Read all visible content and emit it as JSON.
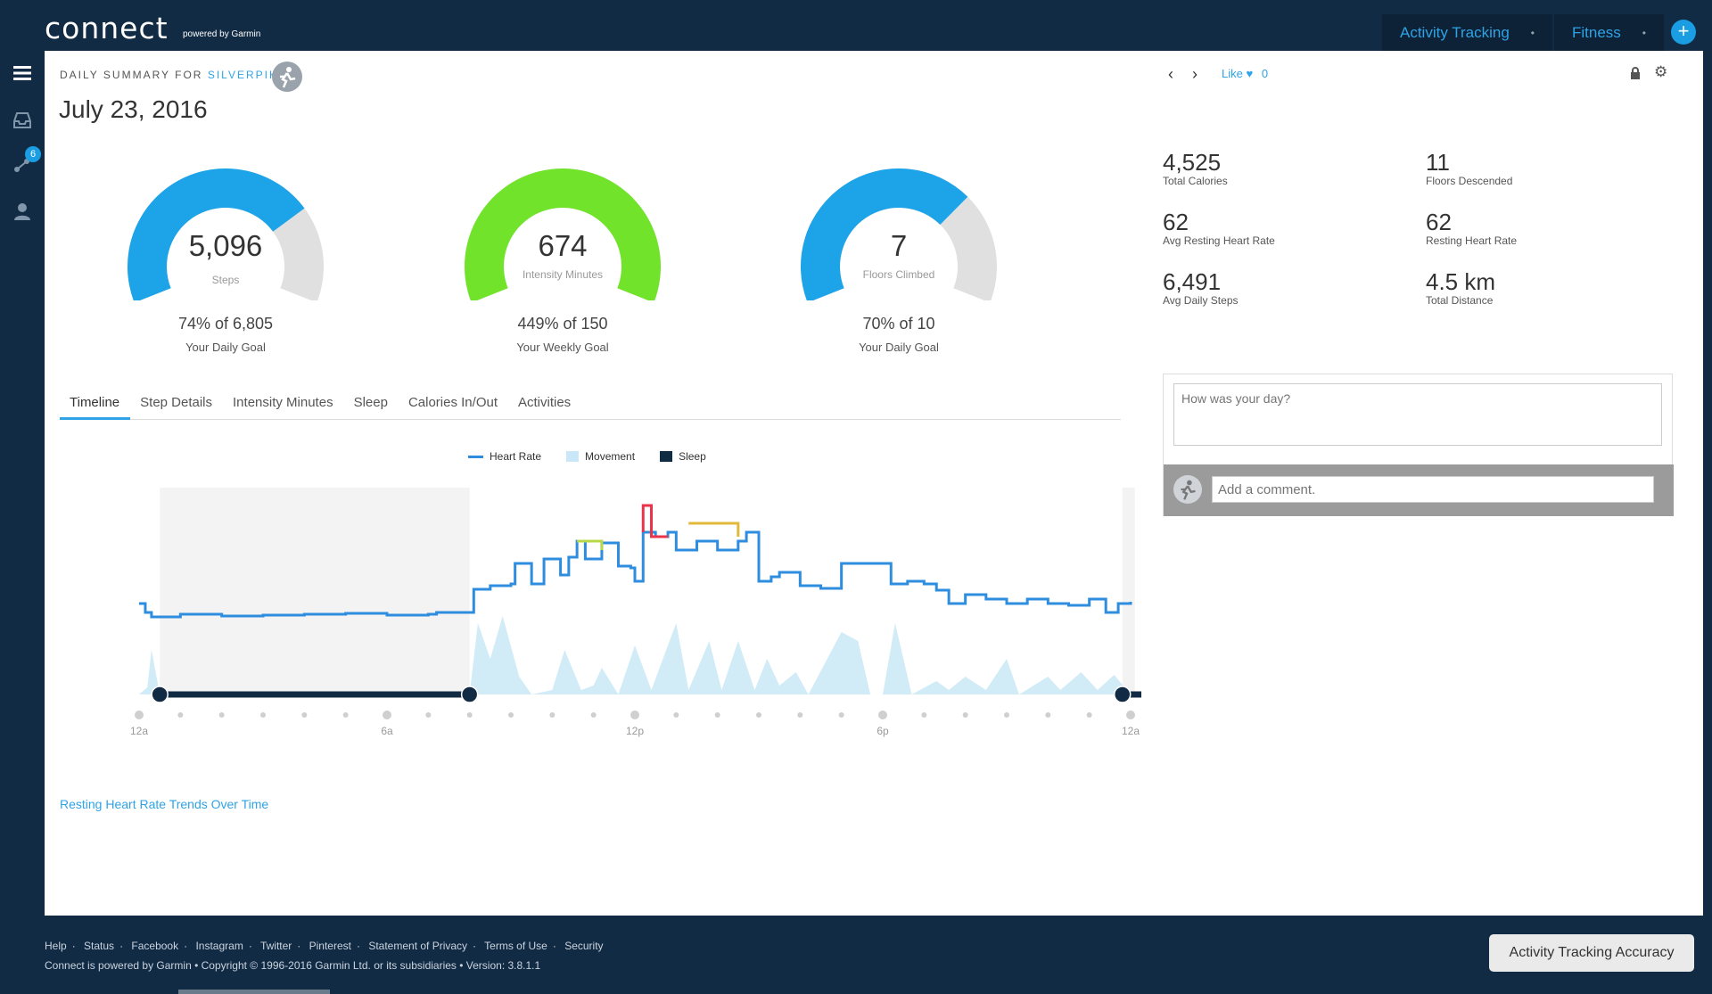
{
  "header": {
    "logo": "connect",
    "logo_sub": "powered by Garmin",
    "nav": [
      {
        "label": "Activity Tracking"
      },
      {
        "label": "Fitness"
      }
    ],
    "plus": "+"
  },
  "rail": {
    "badge_count": "6"
  },
  "summary": {
    "label_prefix": "DAILY SUMMARY FOR",
    "user": "SILVERPIK",
    "date": "July 23, 2016",
    "like_label": "Like",
    "like_count": "0"
  },
  "gauges": [
    {
      "value": "5,096",
      "label": "Steps",
      "percent": "74% of 6,805",
      "goal": "Your Daily Goal",
      "fraction": 0.74,
      "color": "#1ca3e8"
    },
    {
      "value": "674",
      "label": "Intensity Minutes",
      "percent": "449% of 150",
      "goal": "Your Weekly Goal",
      "fraction": 1.0,
      "color": "#71e32a"
    },
    {
      "value": "7",
      "label": "Floors Climbed",
      "percent": "70% of 10",
      "goal": "Your Daily Goal",
      "fraction": 0.7,
      "color": "#1ca3e8"
    }
  ],
  "stats": [
    {
      "value": "4,525",
      "label": "Total Calories"
    },
    {
      "value": "11",
      "label": "Floors Descended"
    },
    {
      "value": "62",
      "label": "Avg Resting Heart Rate"
    },
    {
      "value": "62",
      "label": "Resting Heart Rate"
    },
    {
      "value": "6,491",
      "label": "Avg Daily Steps"
    },
    {
      "value": "4.5 km",
      "label": "Total Distance"
    }
  ],
  "tabs": [
    "Timeline",
    "Step Details",
    "Intensity Minutes",
    "Sleep",
    "Calories In/Out",
    "Activities"
  ],
  "chart_data": {
    "type": "line",
    "legend": [
      "Heart Rate",
      "Movement",
      "Sleep"
    ],
    "x_ticks": [
      "12a",
      "6a",
      "12p",
      "6p",
      "12a"
    ],
    "sleep_window": {
      "start": "12a",
      "end": "8a"
    },
    "colors": {
      "heart_rate": "#2f8ddf",
      "movement": "#c9e7f6",
      "sleep": "#122b45"
    }
  },
  "links": {
    "rhr_trends": "Resting Heart Rate Trends Over Time"
  },
  "comments": {
    "day_placeholder": "How was your day?",
    "comment_placeholder": "Add a comment."
  },
  "footer": {
    "links": [
      "Help",
      "Status",
      "Facebook",
      "Instagram",
      "Twitter",
      "Pinterest",
      "Statement of Privacy",
      "Terms of Use",
      "Security"
    ],
    "copyright": "Connect is powered by Garmin • Copyright © 1996-2016 Garmin Ltd. or its subsidiaries • Version: 3.8.1.1",
    "accuracy_button": "Activity Tracking Accuracy"
  }
}
